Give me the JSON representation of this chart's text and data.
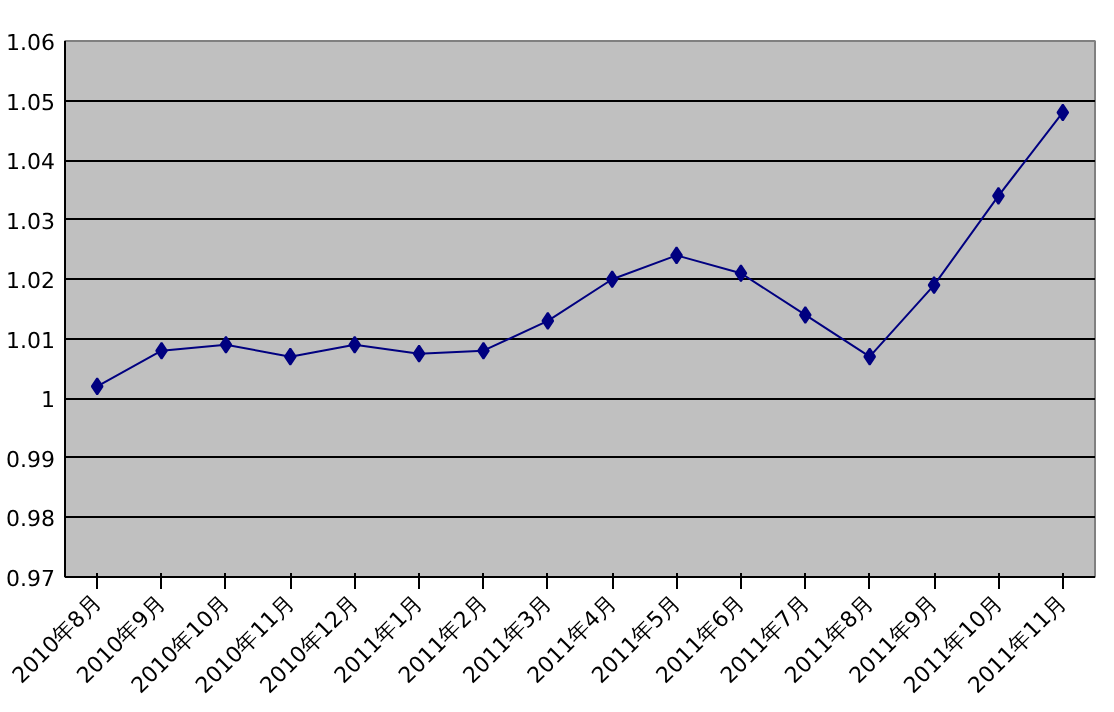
{
  "chart_data": {
    "type": "line",
    "categories": [
      "2010年8月",
      "2010年9月",
      "2010年10月",
      "2010年11月",
      "2010年12月",
      "2011年1月",
      "2011年2月",
      "2011年3月",
      "2011年4月",
      "2011年5月",
      "2011年6月",
      "2011年7月",
      "2011年8月",
      "2011年9月",
      "2011年10月",
      "2011年11月"
    ],
    "series": [
      {
        "color": "#000080",
        "values": [
          1.002,
          1.008,
          1.009,
          1.007,
          1.009,
          1.0075,
          1.008,
          1.013,
          1.02,
          1.024,
          1.021,
          1.014,
          1.007,
          1.019,
          1.034,
          1.048
        ]
      }
    ],
    "ylim": [
      0.97,
      1.06
    ],
    "yticks": [
      {
        "value": 0.97,
        "label": "0.97"
      },
      {
        "value": 0.98,
        "label": "0.98"
      },
      {
        "value": 0.99,
        "label": "0.99"
      },
      {
        "value": 1,
        "label": "1"
      },
      {
        "value": 1.01,
        "label": "1.01"
      },
      {
        "value": 1.02,
        "label": "1.02"
      },
      {
        "value": 1.03,
        "label": "1.03"
      },
      {
        "value": 1.04,
        "label": "1.04"
      },
      {
        "value": 1.05,
        "label": "1.05"
      },
      {
        "value": 1.06,
        "label": "1.06"
      }
    ],
    "grid": "y",
    "marker": "diamond",
    "line_style": "solid"
  }
}
